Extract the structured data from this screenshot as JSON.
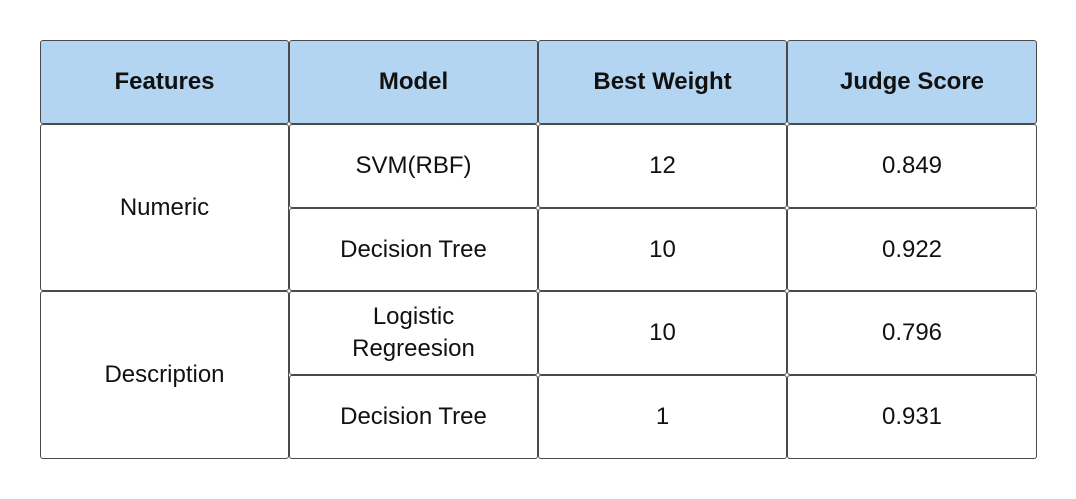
{
  "table": {
    "headers": [
      "Features",
      "Model",
      "Best Weight",
      "Judge Score"
    ],
    "groups": [
      {
        "feature": "Numeric",
        "rows": [
          {
            "model": "SVM(RBF)",
            "best_weight": "12",
            "judge_score": "0.849"
          },
          {
            "model": "Decision Tree",
            "best_weight": "10",
            "judge_score": "0.922"
          }
        ]
      },
      {
        "feature": "Description",
        "rows": [
          {
            "model": "Logistic\nRegreesion",
            "best_weight": "10",
            "judge_score": "0.796"
          },
          {
            "model": "Decision Tree",
            "best_weight": "1",
            "judge_score": "0.931"
          }
        ]
      }
    ]
  },
  "colors": {
    "header_fill": "#b3d5f1",
    "border": "#4a4a4a",
    "cell_fill": "#ffffff"
  }
}
